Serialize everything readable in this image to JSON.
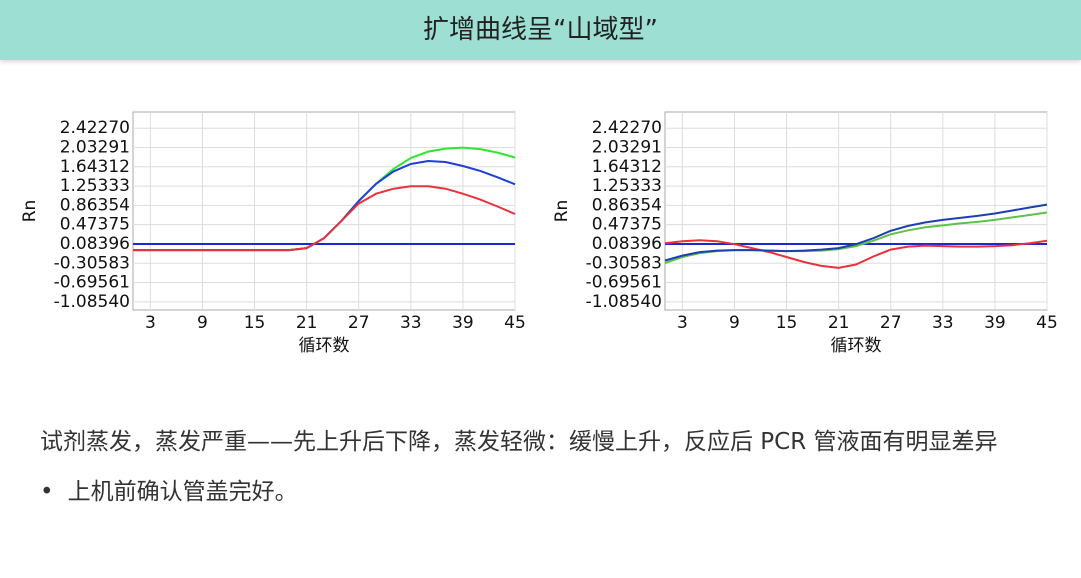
{
  "header": {
    "title": "扩增曲线呈“山域型”"
  },
  "chart_data": [
    {
      "type": "line",
      "x_label": "循环数",
      "y_label": "Rn",
      "x": [
        1,
        3,
        5,
        7,
        9,
        11,
        13,
        15,
        17,
        19,
        21,
        23,
        25,
        27,
        29,
        31,
        33,
        35,
        37,
        39,
        41,
        43,
        45
      ],
      "xlim": [
        1,
        45
      ],
      "xticks": [
        3,
        9,
        15,
        21,
        27,
        33,
        39,
        45
      ],
      "ylim": [
        -1.25,
        2.75
      ],
      "yticks": [
        {
          "value": 2.4227,
          "label": "2.42270"
        },
        2.03291,
        1.64312,
        1.25333,
        0.86354,
        0.47375,
        0.08396,
        -0.30583,
        -0.69561,
        {
          "value": -1.0854,
          "label": "-1.08540"
        }
      ],
      "grid": true,
      "threshold": 0.08396,
      "threshold_color": "#1a2ad0",
      "series": [
        {
          "color": "#2ee62e",
          "values": [
            -0.04,
            -0.04,
            -0.04,
            -0.04,
            -0.04,
            -0.04,
            -0.04,
            -0.04,
            -0.04,
            -0.04,
            0.0,
            0.2,
            0.55,
            0.95,
            1.3,
            1.6,
            1.82,
            1.95,
            2.01,
            2.03,
            2.0,
            1.93,
            1.83
          ]
        },
        {
          "color": "#1f3fd8",
          "values": [
            -0.04,
            -0.04,
            -0.04,
            -0.04,
            -0.04,
            -0.04,
            -0.04,
            -0.04,
            -0.04,
            -0.04,
            0.0,
            0.2,
            0.55,
            0.95,
            1.3,
            1.55,
            1.7,
            1.76,
            1.74,
            1.66,
            1.56,
            1.43,
            1.29
          ]
        },
        {
          "color": "#e8323c",
          "values": [
            -0.04,
            -0.04,
            -0.04,
            -0.04,
            -0.04,
            -0.04,
            -0.04,
            -0.04,
            -0.04,
            -0.04,
            0.0,
            0.2,
            0.55,
            0.9,
            1.1,
            1.2,
            1.25,
            1.25,
            1.2,
            1.1,
            0.98,
            0.84,
            0.69
          ]
        }
      ]
    },
    {
      "type": "line",
      "x_label": "循环数",
      "y_label": "Rn",
      "x": [
        1,
        3,
        5,
        7,
        9,
        11,
        13,
        15,
        17,
        19,
        21,
        23,
        25,
        27,
        29,
        31,
        33,
        35,
        37,
        39,
        41,
        43,
        45
      ],
      "xlim": [
        1,
        45
      ],
      "xticks": [
        3,
        9,
        15,
        21,
        27,
        33,
        39,
        45
      ],
      "ylim": [
        -1.25,
        2.75
      ],
      "yticks": [
        {
          "value": 2.4227,
          "label": "2.42270"
        },
        2.03291,
        1.64312,
        1.25333,
        0.86354,
        0.47375,
        0.08396,
        -0.30583,
        -0.69561,
        {
          "value": -1.0854,
          "label": "-1.08540"
        }
      ],
      "grid": true,
      "threshold": 0.08396,
      "threshold_color": "#1a2ad0",
      "series": [
        {
          "color": "#e8323c",
          "values": [
            0.1,
            0.14,
            0.16,
            0.14,
            0.08,
            0.0,
            -0.08,
            -0.18,
            -0.28,
            -0.36,
            -0.4,
            -0.33,
            -0.17,
            -0.03,
            0.03,
            0.05,
            0.04,
            0.03,
            0.03,
            0.04,
            0.06,
            0.1,
            0.15
          ]
        },
        {
          "color": "#5cc24a",
          "values": [
            -0.3,
            -0.18,
            -0.1,
            -0.06,
            -0.04,
            -0.04,
            -0.05,
            -0.06,
            -0.06,
            -0.05,
            -0.02,
            0.04,
            0.15,
            0.28,
            0.36,
            0.42,
            0.46,
            0.5,
            0.53,
            0.57,
            0.62,
            0.67,
            0.72
          ]
        },
        {
          "color": "#1f3fb0",
          "values": [
            -0.25,
            -0.15,
            -0.08,
            -0.05,
            -0.04,
            -0.04,
            -0.05,
            -0.06,
            -0.05,
            -0.03,
            0.0,
            0.08,
            0.2,
            0.35,
            0.45,
            0.52,
            0.57,
            0.61,
            0.65,
            0.7,
            0.76,
            0.82,
            0.88
          ]
        }
      ]
    }
  ],
  "body": {
    "paragraph": "试剂蒸发，蒸发严重——先上升后下降，蒸发轻微：缓慢上升，反应后 PCR 管液面有明显差异",
    "bullets": [
      "上机前确认管盖完好。"
    ]
  }
}
